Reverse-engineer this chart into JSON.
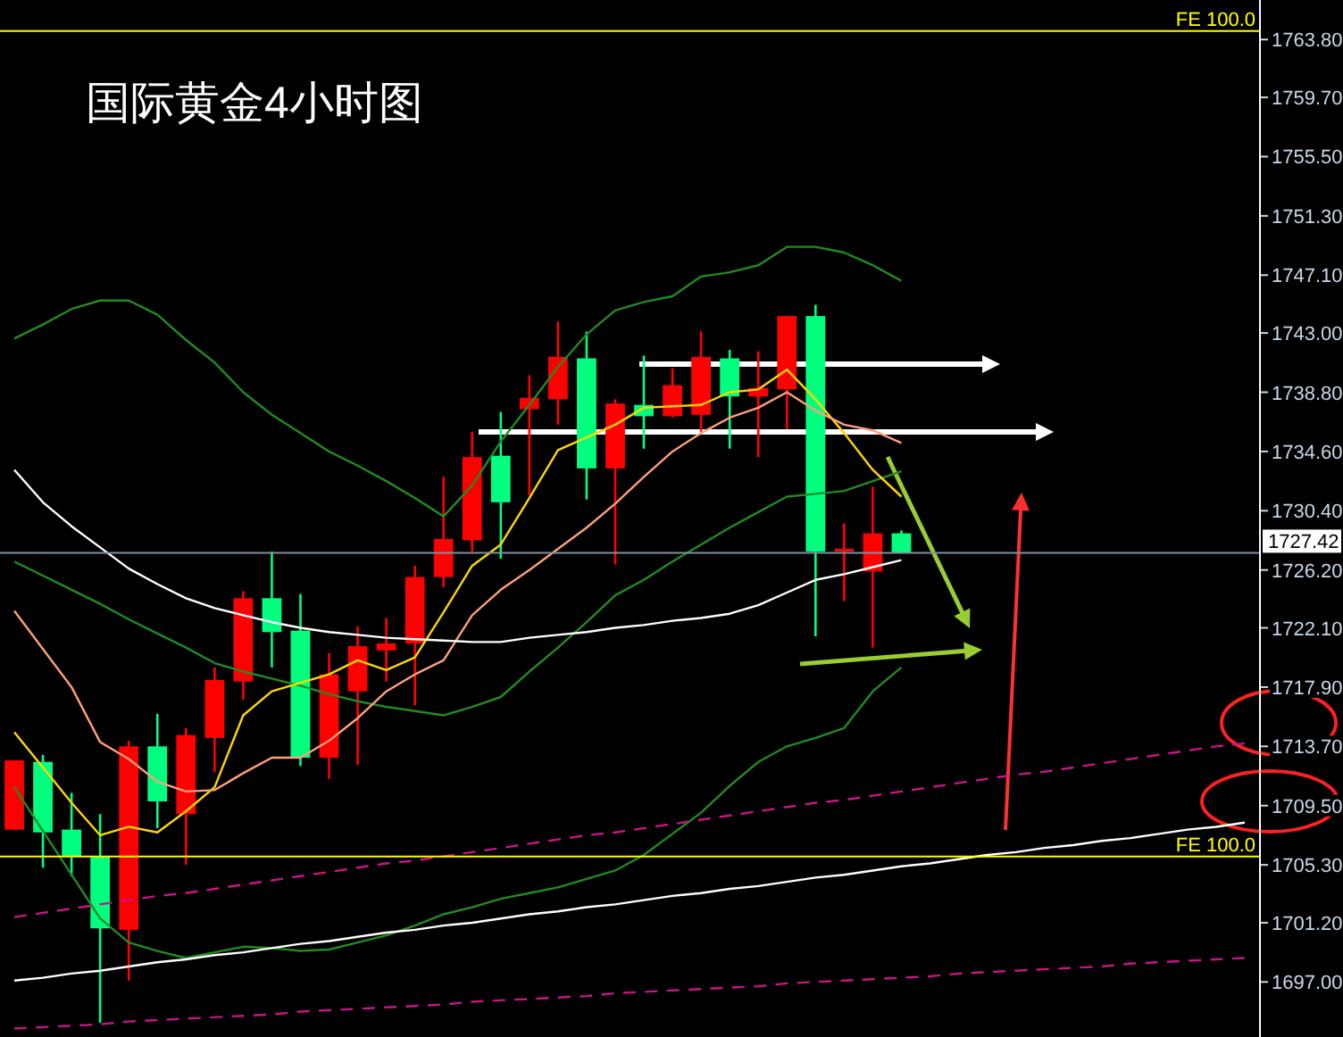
{
  "chart_data": {
    "type": "candlestick",
    "title": "国际黄金4小时图",
    "categories": [
      null,
      null,
      null,
      null,
      null,
      null,
      null,
      null,
      null,
      null,
      null,
      null,
      null,
      null,
      null,
      null,
      null,
      null,
      null,
      null,
      null,
      null,
      null,
      null,
      null,
      null,
      null,
      null,
      null,
      null,
      null,
      null,
      null,
      null,
      null,
      null,
      null,
      null,
      null,
      null,
      null,
      null,
      null,
      null
    ],
    "ohlc": [
      [
        1712.7,
        1712.7,
        1707.8,
        1707.8
      ],
      [
        1707.6,
        1713.1,
        1705.1,
        1712.6
      ],
      [
        1705.9,
        1710.4,
        1704.5,
        1707.8
      ],
      [
        1700.8,
        1708.9,
        1694.1,
        1705.9
      ],
      [
        1713.7,
        1714.1,
        1697.1,
        1700.7
      ],
      [
        1709.8,
        1716.0,
        1707.9,
        1713.7
      ],
      [
        1714.5,
        1715.0,
        1705.3,
        1708.9
      ],
      [
        1718.4,
        1719.3,
        1711.9,
        1714.3
      ],
      [
        1724.2,
        1724.7,
        1717.0,
        1718.3
      ],
      [
        1721.8,
        1727.5,
        1719.3,
        1724.2
      ],
      [
        1712.9,
        1724.5,
        1712.3,
        1721.9
      ],
      [
        1718.8,
        1720.3,
        1711.4,
        1712.9
      ],
      [
        1720.8,
        1722.2,
        1712.4,
        1717.6
      ],
      [
        1721.0,
        1722.8,
        1718.3,
        1720.5
      ],
      [
        1725.7,
        1726.5,
        1716.6,
        1721.0
      ],
      [
        1728.4,
        1732.8,
        1725.0,
        1725.7
      ],
      [
        1734.2,
        1736.0,
        1727.5,
        1728.3
      ],
      [
        1731.0,
        1737.4,
        1727.0,
        1734.3
      ],
      [
        1738.4,
        1740.0,
        1731.5,
        1737.6
      ],
      [
        1741.3,
        1743.8,
        1736.5,
        1738.3
      ],
      [
        1733.4,
        1743.1,
        1731.2,
        1741.2
      ],
      [
        1738.0,
        1738.3,
        1726.6,
        1733.4
      ],
      [
        1737.1,
        1741.4,
        1734.8,
        1737.9
      ],
      [
        1739.3,
        1740.5,
        1737.0,
        1737.1
      ],
      [
        1741.3,
        1743.1,
        1736.0,
        1737.2
      ],
      [
        1738.5,
        1741.8,
        1734.8,
        1741.2
      ],
      [
        1739.1,
        1741.7,
        1734.2,
        1738.5
      ],
      [
        1744.2,
        1744.2,
        1736.2,
        1739.0
      ],
      [
        1727.5,
        1745.0,
        1721.5,
        1744.2
      ],
      [
        1727.7,
        1729.5,
        1724.0,
        1727.6
      ],
      [
        1728.8,
        1732.1,
        1720.7,
        1726.1
      ],
      [
        1727.4,
        1729.0,
        1727.4,
        1728.8
      ],
      null,
      null,
      null,
      null,
      null,
      null,
      null,
      null,
      null,
      null,
      null,
      null
    ],
    "colors": [
      "#ff0000",
      "#00ff7f",
      "#00ff7f",
      "#00ff7f",
      "#ff0000",
      "#00ff7f",
      "#ff0000",
      "#ff0000",
      "#ff0000",
      "#00ff7f",
      "#00ff7f",
      "#ff0000",
      "#ff0000",
      "#ff0000",
      "#ff0000",
      "#ff0000",
      "#ff0000",
      "#00ff7f",
      "#ff0000",
      "#ff0000",
      "#00ff7f",
      "#ff0000",
      "#00ff7f",
      "#ff0000",
      "#ff0000",
      "#00ff7f",
      "#ff0000",
      "#ff0000",
      "#00ff7f",
      "#ff0000",
      "#ff0000",
      "#00ff7f",
      null,
      null,
      null,
      null,
      null,
      null,
      null,
      null,
      null,
      null,
      null,
      null
    ],
    "series": [
      {
        "type": "line",
        "color": "#228b22",
        "values": [
          1742.6,
          1743.6,
          1744.7,
          1745.3,
          1745.3,
          1744.3,
          1742.5,
          1740.9,
          1738.8,
          1737.2,
          1735.9,
          1734.6,
          1733.6,
          1732.5,
          1731.3,
          1730.0,
          1732.2,
          1735.3,
          1737.9,
          1740.6,
          1742.9,
          1744.6,
          1745.2,
          1745.6,
          1747.0,
          1747.3,
          1747.8,
          1749.1,
          1749.1,
          1748.7,
          1747.8,
          1746.7,
          null,
          null,
          null,
          null,
          null,
          null,
          null,
          null,
          null,
          null,
          null,
          null
        ]
      },
      {
        "type": "line",
        "color": "#228b22",
        "values": [
          1726.8,
          1725.8,
          1724.8,
          1723.8,
          1722.7,
          1721.7,
          1720.7,
          1719.6,
          1719.0,
          1718.5,
          1718.0,
          1717.4,
          1716.9,
          1716.5,
          1716.2,
          1715.9,
          1716.5,
          1717.2,
          1719.0,
          1720.7,
          1722.5,
          1724.4,
          1725.5,
          1726.8,
          1728.0,
          1729.2,
          1730.3,
          1731.4,
          1731.6,
          1731.8,
          1732.5,
          1733.2,
          null,
          null,
          null,
          null,
          null,
          null,
          null,
          null,
          null,
          null,
          null,
          null
        ]
      },
      {
        "type": "line",
        "color": "#228b22",
        "values": [
          1710.8,
          1707.7,
          1704.6,
          1701.5,
          1699.8,
          1699.2,
          1698.7,
          1699.1,
          1699.5,
          1699.4,
          1699.2,
          1699.3,
          1699.8,
          1700.3,
          1701.0,
          1701.8,
          1702.3,
          1702.9,
          1703.3,
          1703.7,
          1704.3,
          1704.9,
          1706.0,
          1707.5,
          1709.0,
          1710.9,
          1712.6,
          1713.7,
          1714.3,
          1715.0,
          1717.6,
          1719.3,
          null,
          null,
          null,
          null,
          null,
          null,
          null,
          null,
          null,
          null,
          null,
          null
        ]
      },
      {
        "type": "line",
        "color": "#ffd700",
        "values": [
          1714.7,
          1712.2,
          1709.7,
          1707.4,
          1708.0,
          1707.6,
          1709.1,
          1710.8,
          1715.9,
          1717.6,
          1718.2,
          1718.8,
          1719.8,
          1719.1,
          1720.0,
          1723.2,
          1726.5,
          1728.0,
          1731.3,
          1734.7,
          1735.6,
          1736.5,
          1737.7,
          1737.8,
          1737.9,
          1738.8,
          1739.0,
          1740.4,
          1738.3,
          1735.9,
          1733.3,
          1731.4,
          null,
          null,
          null,
          null,
          null,
          null,
          null,
          null,
          null,
          null,
          null,
          null
        ]
      },
      {
        "type": "line",
        "color": "#ffa07a",
        "values": [
          1723.3,
          1720.6,
          1717.9,
          1714.0,
          1712.8,
          1711.2,
          1710.5,
          1710.6,
          1711.8,
          1712.9,
          1712.9,
          1714.1,
          1715.7,
          1717.6,
          1718.8,
          1719.8,
          1723.0,
          1724.8,
          1726.2,
          1727.7,
          1729.2,
          1730.9,
          1732.8,
          1734.6,
          1735.9,
          1737.0,
          1737.7,
          1738.8,
          1737.5,
          1736.5,
          1736.1,
          1735.2,
          null,
          null,
          null,
          null,
          null,
          null,
          null,
          null,
          null,
          null,
          null,
          null
        ]
      },
      {
        "type": "line",
        "color": "#ffffff",
        "values": [
          1733.3,
          1731.0,
          1729.3,
          1727.8,
          1726.3,
          1725.2,
          1724.2,
          1723.5,
          1723.0,
          1722.5,
          1722.1,
          1721.8,
          1721.6,
          1721.4,
          1721.3,
          1721.2,
          1721.1,
          1721.1,
          1721.4,
          1721.6,
          1721.8,
          1722.1,
          1722.3,
          1722.6,
          1722.8,
          1723.1,
          1723.7,
          1724.6,
          1725.5,
          1725.9,
          1726.4,
          1726.9,
          null,
          null,
          null,
          null,
          null,
          null,
          null,
          null,
          null,
          null,
          null,
          null
        ]
      },
      {
        "type": "line",
        "color": "#c71585",
        "line_style": "dashed",
        "values": [
          1701.6,
          1701.9,
          1702.2,
          1702.5,
          1702.8,
          1703.1,
          1703.3,
          1703.6,
          1703.9,
          1704.2,
          1704.5,
          1704.8,
          1705.1,
          1705.4,
          1705.6,
          1705.9,
          1706.2,
          1706.5,
          1706.8,
          1707.1,
          1707.4,
          1707.6,
          1707.9,
          1708.2,
          1708.5,
          1708.8,
          1709.1,
          1709.4,
          1709.7,
          1709.9,
          1710.2,
          1710.5,
          1710.8,
          1711.1,
          1711.4,
          1711.7,
          1711.9,
          1712.2,
          1712.5,
          1712.8,
          1713.1,
          1713.4,
          1713.7,
          1713.9
        ]
      },
      {
        "type": "line",
        "color": "#c71585",
        "line_style": "dashed",
        "values": [
          1693.7,
          1693.8,
          1693.9,
          1694.0,
          1694.2,
          1694.3,
          1694.4,
          1694.5,
          1694.6,
          1694.7,
          1694.9,
          1695.0,
          1695.1,
          1695.2,
          1695.3,
          1695.4,
          1695.6,
          1695.7,
          1695.8,
          1695.9,
          1696.0,
          1696.2,
          1696.3,
          1696.4,
          1696.5,
          1696.6,
          1696.7,
          1696.9,
          1697.0,
          1697.1,
          1697.2,
          1697.3,
          1697.4,
          1697.6,
          1697.7,
          1697.8,
          1697.9,
          1698.0,
          1698.1,
          1698.3,
          1698.4,
          1698.5,
          1698.6,
          1698.7
        ]
      },
      {
        "type": "line",
        "color": "#ffffff",
        "values": [
          1697.1,
          1697.3,
          1697.6,
          1697.8,
          1698.1,
          1698.4,
          1698.6,
          1698.9,
          1699.1,
          1699.4,
          1699.7,
          1699.9,
          1700.2,
          1700.5,
          1700.7,
          1701.0,
          1701.2,
          1701.5,
          1701.8,
          1702.0,
          1702.3,
          1702.5,
          1702.8,
          1703.1,
          1703.3,
          1703.6,
          1703.8,
          1704.1,
          1704.4,
          1704.6,
          1704.9,
          1705.2,
          1705.4,
          1705.7,
          1706.0,
          1706.2,
          1706.5,
          1706.7,
          1707.0,
          1707.2,
          1707.5,
          1707.8,
          1708.0,
          1708.3
        ]
      }
    ],
    "ylim": [
      1693.1,
      1766.6
    ],
    "yticks": [
      {
        "value": 1763.8,
        "label": "1763.80"
      },
      {
        "value": 1759.7,
        "label": "1759.70"
      },
      {
        "value": 1755.5,
        "label": "1755.50"
      },
      {
        "value": 1751.3,
        "label": "1751.30"
      },
      {
        "value": 1747.1,
        "label": "1747.10"
      },
      {
        "value": 1743.0,
        "label": "1743.00"
      },
      {
        "value": 1738.8,
        "label": "1738.80"
      },
      {
        "value": 1734.6,
        "label": "1734.60"
      },
      {
        "value": 1730.4,
        "label": "1730.40"
      },
      {
        "value": 1726.2,
        "label": "1726.20"
      },
      {
        "value": 1722.1,
        "label": "1722.10"
      },
      {
        "value": 1717.9,
        "label": "1717.90"
      },
      {
        "value": 1713.7,
        "label": "1713.70"
      },
      {
        "value": 1709.5,
        "label": "1709.50"
      },
      {
        "value": 1705.3,
        "label": "1705.30"
      },
      {
        "value": 1701.2,
        "label": "1701.20"
      },
      {
        "value": 1697.0,
        "label": "1697.00"
      }
    ],
    "tick_labels": "y",
    "ref_lines": [
      {
        "axis": "y",
        "value": 1764.4,
        "label": "FE 100.0",
        "color": "#ffff00"
      },
      {
        "axis": "y",
        "value": 1705.9,
        "label": "FE 100.0",
        "color": "#ffff00"
      },
      {
        "axis": "y",
        "value": 1727.42,
        "label": "1727.42",
        "color": "#8090a0"
      }
    ]
  }
}
